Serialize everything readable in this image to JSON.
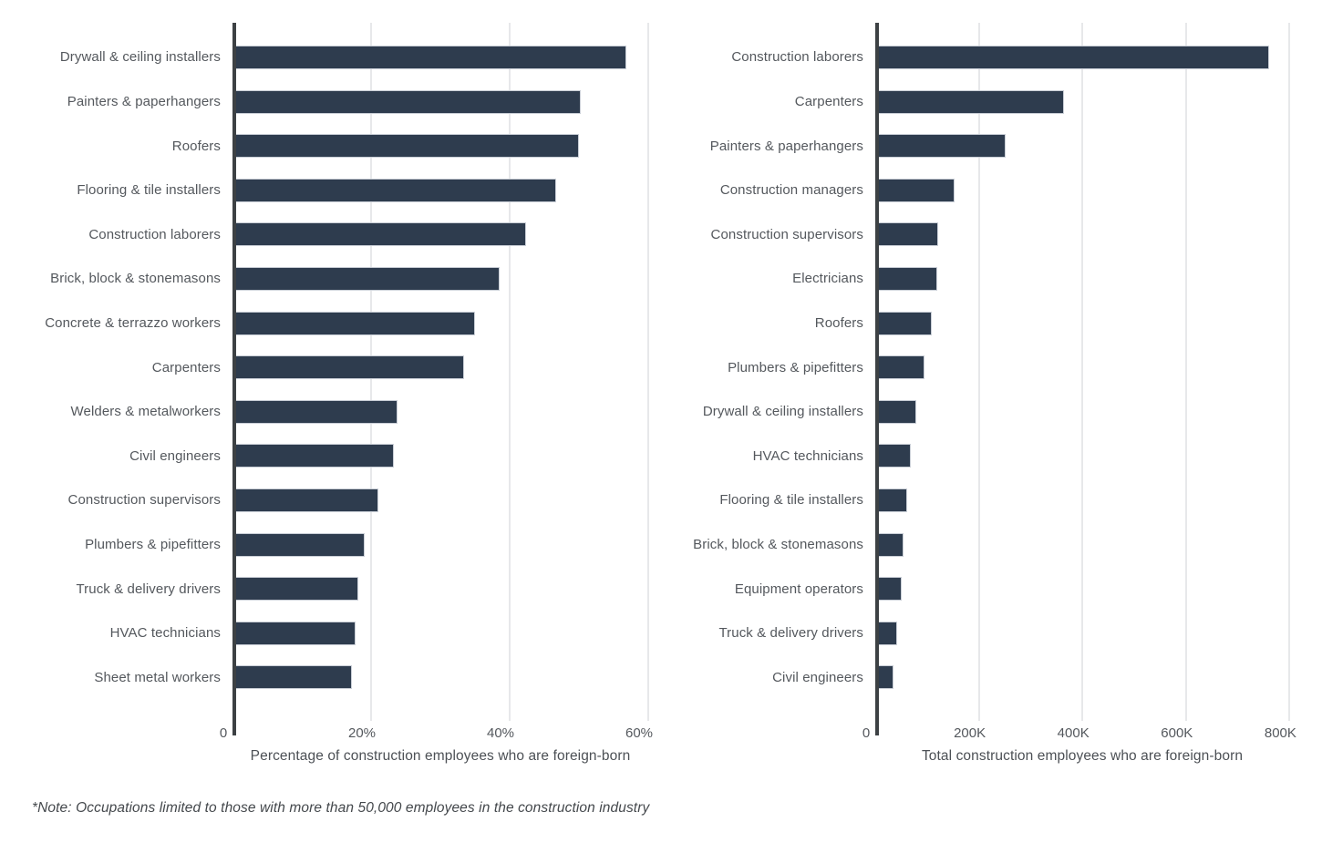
{
  "note": "*Note: Occupations limited to those with more than 50,000 employees in the construction industry",
  "colors": {
    "bar_fill": "#2e3c4e",
    "bar_border": "#c9ced6",
    "axis_line": "#3d4144",
    "gridline": "#e7e8ea",
    "label_text": "#54585d",
    "axis_title_text": "#4c5055",
    "note_text": "#44484c",
    "background": "#ffffff"
  },
  "chart_data": [
    {
      "type": "bar",
      "orientation": "horizontal",
      "title": "",
      "xlabel": "Percentage of construction employees who are foreign-born",
      "ylabel": "",
      "xlim": [
        0,
        60
      ],
      "grid": "vertical",
      "legend": "none",
      "tick_labels": [
        "0",
        "20%",
        "40%",
        "60%"
      ],
      "tick_values": [
        0,
        20,
        40,
        60
      ],
      "categories": [
        "Drywall & ceiling installers",
        "Painters & paperhangers",
        "Roofers",
        "Flooring & tile installers",
        "Construction laborers",
        "Brick, block & stonemasons",
        "Concrete & terrazzo workers",
        "Carpenters",
        "Welders & metalworkers",
        "Civil engineers",
        "Construction supervisors",
        "Plumbers & pipefitters",
        "Truck & delivery drivers",
        "HVAC technicians",
        "Sheet metal workers"
      ],
      "values": [
        56.8,
        50.2,
        50.0,
        46.7,
        42.4,
        38.5,
        35.0,
        33.4,
        23.8,
        23.3,
        21.0,
        19.1,
        18.2,
        17.8,
        17.3
      ],
      "unit": "percent"
    },
    {
      "type": "bar",
      "orientation": "horizontal",
      "title": "",
      "xlabel": "Total construction employees who are foreign-born",
      "ylabel": "",
      "xlim": [
        0,
        800000
      ],
      "grid": "vertical",
      "legend": "none",
      "tick_labels": [
        "0",
        "200K",
        "400K",
        "600K",
        "800K"
      ],
      "tick_values": [
        0,
        200000,
        400000,
        600000,
        800000
      ],
      "categories": [
        "Construction laborers",
        "Carpenters",
        "Painters & paperhangers",
        "Construction managers",
        "Construction supervisors",
        "Electricians",
        "Roofers",
        "Plumbers & pipefitters",
        "Drywall & ceiling installers",
        "HVAC technicians",
        "Flooring & tile installers",
        "Brick, block & stonemasons",
        "Equipment operators",
        "Truck & delivery drivers",
        "Civil engineers"
      ],
      "values": [
        760000,
        365000,
        252000,
        153000,
        122000,
        119000,
        109000,
        95000,
        79000,
        68000,
        62000,
        54000,
        51000,
        42500,
        34500
      ],
      "unit": "employees"
    }
  ]
}
